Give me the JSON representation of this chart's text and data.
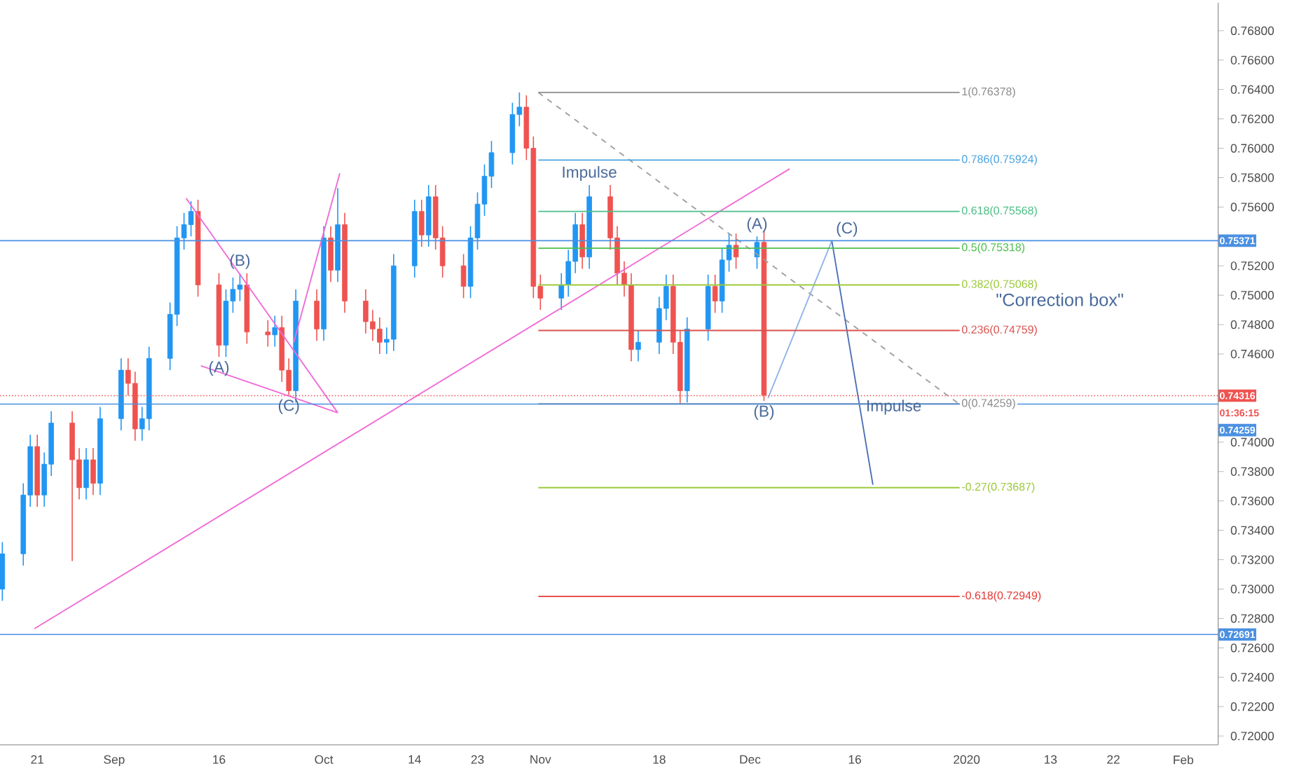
{
  "chart_data": {
    "type": "candlestick",
    "x": [
      "2019-08-16",
      "2019-08-19",
      "2019-08-20",
      "2019-08-21",
      "2019-08-22",
      "2019-08-23",
      "2019-08-26",
      "2019-08-27",
      "2019-08-28",
      "2019-08-29",
      "2019-08-30",
      "2019-09-02",
      "2019-09-03",
      "2019-09-04",
      "2019-09-05",
      "2019-09-06",
      "2019-09-09",
      "2019-09-10",
      "2019-09-11",
      "2019-09-12",
      "2019-09-13",
      "2019-09-16",
      "2019-09-17",
      "2019-09-18",
      "2019-09-19",
      "2019-09-20",
      "2019-09-23",
      "2019-09-24",
      "2019-09-25",
      "2019-09-26",
      "2019-09-27",
      "2019-09-30",
      "2019-10-01",
      "2019-10-02",
      "2019-10-03",
      "2019-10-04",
      "2019-10-07",
      "2019-10-08",
      "2019-10-09",
      "2019-10-10",
      "2019-10-11",
      "2019-10-14",
      "2019-10-15",
      "2019-10-16",
      "2019-10-17",
      "2019-10-18",
      "2019-10-21",
      "2019-10-22",
      "2019-10-23",
      "2019-10-24",
      "2019-10-25",
      "2019-10-28",
      "2019-10-29",
      "2019-10-30",
      "2019-10-31",
      "2019-11-01",
      "2019-11-04",
      "2019-11-05",
      "2019-11-06",
      "2019-11-07",
      "2019-11-08",
      "2019-11-11",
      "2019-11-12",
      "2019-11-13",
      "2019-11-14",
      "2019-11-15",
      "2019-11-18",
      "2019-11-19",
      "2019-11-20",
      "2019-11-21",
      "2019-11-22",
      "2019-11-25",
      "2019-11-26",
      "2019-11-27",
      "2019-11-28",
      "2019-11-29",
      "2019-12-02",
      "2019-12-03"
    ],
    "ohlc": [
      [
        0.73,
        0.7332,
        0.7292,
        0.7324
      ],
      [
        0.7324,
        0.7372,
        0.7316,
        0.7364
      ],
      [
        0.7364,
        0.7405,
        0.7356,
        0.7397
      ],
      [
        0.7397,
        0.7405,
        0.7356,
        0.7364
      ],
      [
        0.7364,
        0.7393,
        0.7356,
        0.7385
      ],
      [
        0.7385,
        0.7421,
        0.7377,
        0.7413
      ],
      [
        0.7413,
        0.7421,
        0.7319,
        0.7388
      ],
      [
        0.7388,
        0.7396,
        0.7361,
        0.7369
      ],
      [
        0.7369,
        0.7396,
        0.7361,
        0.7388
      ],
      [
        0.7388,
        0.7396,
        0.7364,
        0.7372
      ],
      [
        0.7372,
        0.7424,
        0.7364,
        0.7416
      ],
      [
        0.7416,
        0.7457,
        0.7408,
        0.7449
      ],
      [
        0.7449,
        0.7457,
        0.7432,
        0.744
      ],
      [
        0.744,
        0.7448,
        0.7401,
        0.7409
      ],
      [
        0.7409,
        0.7424,
        0.7401,
        0.7416
      ],
      [
        0.7416,
        0.7465,
        0.7408,
        0.7457
      ],
      [
        0.7457,
        0.7495,
        0.7449,
        0.7487
      ],
      [
        0.7487,
        0.7547,
        0.7479,
        0.7539
      ],
      [
        0.7539,
        0.7556,
        0.7531,
        0.7548
      ],
      [
        0.7548,
        0.7564,
        0.754,
        0.7557
      ],
      [
        0.7557,
        0.7565,
        0.7499,
        0.7507
      ],
      [
        0.7507,
        0.7515,
        0.7458,
        0.7466
      ],
      [
        0.7466,
        0.7504,
        0.7458,
        0.7496
      ],
      [
        0.7496,
        0.7512,
        0.7488,
        0.7504
      ],
      [
        0.7504,
        0.7515,
        0.7496,
        0.7507
      ],
      [
        0.7507,
        0.7515,
        0.7467,
        0.7475
      ],
      [
        0.7475,
        0.7483,
        0.7465,
        0.7473
      ],
      [
        0.7473,
        0.7486,
        0.7465,
        0.7478
      ],
      [
        0.7478,
        0.7486,
        0.7441,
        0.7449
      ],
      [
        0.7449,
        0.7457,
        0.7432,
        0.7435
      ],
      [
        0.7435,
        0.7504,
        0.7427,
        0.7496
      ],
      [
        0.7496,
        0.7504,
        0.7469,
        0.7477
      ],
      [
        0.7477,
        0.7547,
        0.7469,
        0.7539
      ],
      [
        0.7539,
        0.7547,
        0.7509,
        0.7517
      ],
      [
        0.7517,
        0.7573,
        0.7509,
        0.7548
      ],
      [
        0.7548,
        0.7556,
        0.7488,
        0.7496
      ],
      [
        0.7496,
        0.7504,
        0.7474,
        0.7482
      ],
      [
        0.7482,
        0.749,
        0.7469,
        0.7477
      ],
      [
        0.7477,
        0.7485,
        0.746,
        0.7468
      ],
      [
        0.7468,
        0.7478,
        0.746,
        0.747
      ],
      [
        0.747,
        0.7528,
        0.7462,
        0.752
      ],
      [
        0.752,
        0.7565,
        0.7512,
        0.7557
      ],
      [
        0.7557,
        0.7565,
        0.7533,
        0.7541
      ],
      [
        0.7541,
        0.7575,
        0.7533,
        0.7567
      ],
      [
        0.7567,
        0.7575,
        0.7531,
        0.7539
      ],
      [
        0.7539,
        0.7547,
        0.7512,
        0.752
      ],
      [
        0.752,
        0.7528,
        0.7498,
        0.7506
      ],
      [
        0.7506,
        0.7547,
        0.7498,
        0.7539
      ],
      [
        0.7539,
        0.757,
        0.7531,
        0.7562
      ],
      [
        0.7562,
        0.7589,
        0.7554,
        0.7581
      ],
      [
        0.7581,
        0.7605,
        0.7573,
        0.7597
      ],
      [
        0.7597,
        0.7631,
        0.7589,
        0.7623
      ],
      [
        0.7623,
        0.7638,
        0.7615,
        0.7628
      ],
      [
        0.7628,
        0.7636,
        0.7592,
        0.76
      ],
      [
        0.76,
        0.7608,
        0.7498,
        0.7506
      ],
      [
        0.7506,
        0.7514,
        0.749,
        0.7498
      ],
      [
        0.7498,
        0.7515,
        0.749,
        0.7507
      ],
      [
        0.7507,
        0.7531,
        0.7499,
        0.7523
      ],
      [
        0.7523,
        0.7556,
        0.7515,
        0.7548
      ],
      [
        0.7548,
        0.7556,
        0.7518,
        0.7526
      ],
      [
        0.7526,
        0.7575,
        0.7518,
        0.7567
      ],
      [
        0.7567,
        0.7575,
        0.7531,
        0.7539
      ],
      [
        0.7539,
        0.7547,
        0.7507,
        0.7515
      ],
      [
        0.7515,
        0.7523,
        0.7499,
        0.7507
      ],
      [
        0.7507,
        0.7515,
        0.7455,
        0.7463
      ],
      [
        0.7463,
        0.7476,
        0.7455,
        0.7468
      ],
      [
        0.7468,
        0.7499,
        0.746,
        0.7491
      ],
      [
        0.7491,
        0.7514,
        0.7483,
        0.7506
      ],
      [
        0.7506,
        0.7514,
        0.746,
        0.7468
      ],
      [
        0.7468,
        0.7476,
        0.7426,
        0.7435
      ],
      [
        0.7435,
        0.7485,
        0.7427,
        0.7477
      ],
      [
        0.7477,
        0.7514,
        0.7469,
        0.7506
      ],
      [
        0.7506,
        0.7514,
        0.7488,
        0.7496
      ],
      [
        0.7496,
        0.7532,
        0.7488,
        0.7524
      ],
      [
        0.7524,
        0.7542,
        0.7516,
        0.7534
      ],
      [
        0.7534,
        0.7542,
        0.7518,
        0.7526
      ],
      [
        0.7526,
        0.754,
        0.7518,
        0.7536
      ],
      [
        0.7536,
        0.7544,
        0.7428,
        0.7432
      ]
    ],
    "colors": [
      "#2196f3",
      "#2196f3",
      "#2196f3",
      "#ef5350",
      "#2196f3",
      "#2196f3",
      "#ef5350",
      "#ef5350",
      "#2196f3",
      "#ef5350",
      "#2196f3",
      "#2196f3",
      "#ef5350",
      "#ef5350",
      "#2196f3",
      "#2196f3",
      "#2196f3",
      "#2196f3",
      "#2196f3",
      "#2196f3",
      "#ef5350",
      "#ef5350",
      "#2196f3",
      "#2196f3",
      "#2196f3",
      "#ef5350",
      "#ef5350",
      "#2196f3",
      "#ef5350",
      "#ef5350",
      "#2196f3",
      "#ef5350",
      "#2196f3",
      "#ef5350",
      "#2196f3",
      "#ef5350",
      "#ef5350",
      "#ef5350",
      "#ef5350",
      "#2196f3",
      "#2196f3",
      "#2196f3",
      "#ef5350",
      "#2196f3",
      "#ef5350",
      "#ef5350",
      "#ef5350",
      "#2196f3",
      "#2196f3",
      "#2196f3",
      "#2196f3",
      "#2196f3",
      "#2196f3",
      "#ef5350",
      "#ef5350",
      "#ef5350",
      "#2196f3",
      "#2196f3",
      "#2196f3",
      "#ef5350",
      "#2196f3",
      "#ef5350",
      "#ef5350",
      "#ef5350",
      "#ef5350",
      "#2196f3",
      "#2196f3",
      "#2196f3",
      "#ef5350",
      "#ef5350",
      "#2196f3",
      "#2196f3",
      "#ef5350",
      "#2196f3",
      "#2196f3",
      "#ef5350",
      "#2196f3",
      "#ef5350"
    ],
    "series": [
      {
        "type": "line",
        "x": [
          "2019-08-20T14:00",
          "2019-12-06T16:00"
        ],
        "values": [
          0.7273,
          0.7586
        ],
        "color": "#f06ad8"
      },
      {
        "type": "line",
        "x": [
          "2019-09-11T07:00",
          "2019-10-03"
        ],
        "values": [
          0.7566,
          0.742
        ],
        "color": "#f06ad8"
      },
      {
        "type": "line",
        "x": [
          "2019-09-13T10:00",
          "2019-10-03"
        ],
        "values": [
          0.7452,
          0.742
        ],
        "color": "#f06ad8"
      },
      {
        "type": "line",
        "x": [
          "2019-09-26T17:00",
          "2019-10-03T07:00"
        ],
        "values": [
          0.7468,
          0.7583
        ],
        "color": "#f06ad8"
      },
      {
        "type": "line",
        "x": [
          "2019-10-31T17:00",
          "2019-12-30T22:00"
        ],
        "values": [
          0.7638,
          0.7426
        ],
        "color": "#9e9e9e",
        "line_style": "dashed"
      },
      {
        "type": "line",
        "x": [
          "2019-12-03T14:00",
          "2019-12-12T17:00"
        ],
        "values": [
          0.743,
          0.7537
        ],
        "color": "#8fb4e8"
      },
      {
        "type": "line",
        "x": [
          "2019-12-12T17:00",
          "2019-12-18T14:00"
        ],
        "values": [
          0.7537,
          0.7371
        ],
        "color": "#4a6fb5"
      },
      {
        "type": "line",
        "name": "1(0.76378)",
        "x": [
          "2019-10-31T17:00",
          "2019-12-31"
        ],
        "values": [
          0.7638,
          0.7638
        ],
        "color": "#8c8c8c"
      },
      {
        "type": "line",
        "name": "0.786(0.75924)",
        "x": [
          "2019-10-31T17:00",
          "2019-12-31"
        ],
        "values": [
          0.7592,
          0.7592
        ],
        "color": "#4aa3df"
      },
      {
        "type": "line",
        "name": "0.618(0.75568)",
        "x": [
          "2019-10-31T17:00",
          "2019-12-31"
        ],
        "values": [
          0.7557,
          0.7557
        ],
        "color": "#4cbf86"
      },
      {
        "type": "line",
        "name": "0.5(0.75318)",
        "x": [
          "2019-10-31T17:00",
          "2019-12-31"
        ],
        "values": [
          0.7532,
          0.7532
        ],
        "color": "#4cbf4c"
      },
      {
        "type": "line",
        "name": "0.382(0.75068)",
        "x": [
          "2019-10-31T17:00",
          "2019-12-31"
        ],
        "values": [
          0.7507,
          0.7507
        ],
        "color": "#9cc93a"
      },
      {
        "type": "line",
        "name": "0.236(0.74759)",
        "x": [
          "2019-10-31T17:00",
          "2019-12-31"
        ],
        "values": [
          0.7476,
          0.7476
        ],
        "color": "#d9534f"
      },
      {
        "type": "line",
        "name": "0(0.74259)",
        "x": [
          "2019-10-31T17:00",
          "2019-12-31"
        ],
        "values": [
          0.7426,
          0.7426
        ],
        "color": "#8c8c8c"
      },
      {
        "type": "line",
        "name": "-0.27(0.73687)",
        "x": [
          "2019-10-31T17:00",
          "2019-12-31"
        ],
        "values": [
          0.7369,
          0.7369
        ],
        "color": "#9cc93a"
      },
      {
        "type": "line",
        "name": "-0.618(0.72949)",
        "x": [
          "2019-10-31T17:00",
          "2019-12-31"
        ],
        "values": [
          0.7295,
          0.7295
        ],
        "color": "#e53935"
      }
    ],
    "ref_lines": [
      {
        "axis": "y",
        "value": 0.75371,
        "label": "0.75371",
        "color": "#4a90e2"
      },
      {
        "axis": "y",
        "value": 0.74316,
        "label": "0.74316",
        "color": "#ef5350",
        "line_style": "dotted"
      },
      {
        "axis": "y",
        "value": 0.74259,
        "label": "0.74259",
        "color": "#4a90e2"
      },
      {
        "axis": "y",
        "value": 0.72691,
        "label": "0.72691",
        "color": "#4a90e2"
      }
    ],
    "annotations": [
      {
        "text": "(A)",
        "x": "2019-09-16",
        "y": 0.7458
      },
      {
        "text": "(B)",
        "x": "2019-09-19",
        "y": 0.7515
      },
      {
        "text": "(C)",
        "x": "2019-09-26",
        "y": 0.7432
      },
      {
        "text": "Impulse",
        "x": "2019-11-08",
        "y": 0.7575
      },
      {
        "text": "(A)",
        "x": "2019-12-02",
        "y": 0.754
      },
      {
        "text": "(C)",
        "x": "2019-12-12T17:00",
        "y": 0.7537
      },
      {
        "text": "(B)",
        "x": "2019-12-03",
        "y": 0.7428
      },
      {
        "text": "Impulse",
        "x": "2019-12-17T00:00",
        "y": 0.7416
      },
      "\"Correction box\"",
      {
        "text": "01:36:15",
        "y": 0.74316
      }
    ],
    "xlim": [
      "2019-08-15T16:00",
      "2020-02-06"
    ],
    "ylim": [
      0.7194,
      0.7699
    ],
    "xticks": [
      {
        "value": "2019-08-21",
        "label": "21"
      },
      {
        "value": "2019-09-01",
        "label": "Sep"
      },
      {
        "value": "2019-09-16",
        "label": "16"
      },
      {
        "value": "2019-10-01",
        "label": "Oct"
      },
      {
        "value": "2019-10-14",
        "label": "14"
      },
      {
        "value": "2019-10-23",
        "label": "23"
      },
      {
        "value": "2019-11-01",
        "label": "Nov"
      },
      {
        "value": "2019-11-18",
        "label": "18"
      },
      {
        "value": "2019-12-01",
        "label": "Dec"
      },
      {
        "value": "2019-12-16",
        "label": "16"
      },
      {
        "value": "2020-01-01",
        "label": "2020"
      },
      {
        "value": "2020-01-13",
        "label": "13"
      },
      {
        "value": "2020-01-22",
        "label": "22"
      },
      {
        "value": "2020-02-01",
        "label": "Feb"
      }
    ],
    "yticks": [
      {
        "value": 0.72,
        "label": "0.72000"
      },
      {
        "value": 0.722,
        "label": "0.72200"
      },
      {
        "value": 0.724,
        "label": "0.72400"
      },
      {
        "value": 0.726,
        "label": "0.72600"
      },
      {
        "value": 0.728,
        "label": "0.72800"
      },
      {
        "value": 0.73,
        "label": "0.73000"
      },
      {
        "value": 0.732,
        "label": "0.73200"
      },
      {
        "value": 0.734,
        "label": "0.73400"
      },
      {
        "value": 0.736,
        "label": "0.73600"
      },
      {
        "value": 0.738,
        "label": "0.73800"
      },
      {
        "value": 0.74,
        "label": "0.74000"
      },
      {
        "value": 0.746,
        "label": "0.74600"
      },
      {
        "value": 0.748,
        "label": "0.74800"
      },
      {
        "value": 0.75,
        "label": "0.75000"
      },
      {
        "value": 0.752,
        "label": "0.75200"
      },
      {
        "value": 0.756,
        "label": "0.75600"
      },
      {
        "value": 0.758,
        "label": "0.75800"
      },
      {
        "value": 0.76,
        "label": "0.76000"
      },
      {
        "value": 0.762,
        "label": "0.76200"
      },
      {
        "value": 0.764,
        "label": "0.76400"
      },
      {
        "value": 0.766,
        "label": "0.76600"
      },
      {
        "value": 0.768,
        "label": "0.76800"
      }
    ]
  }
}
